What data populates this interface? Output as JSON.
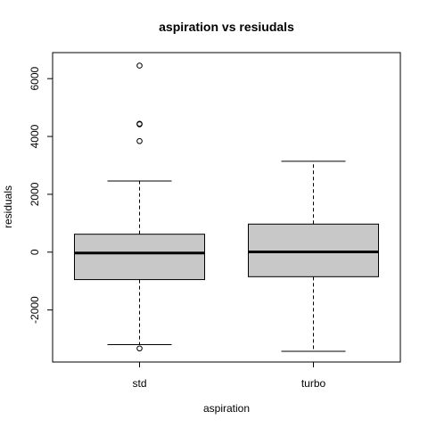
{
  "chart_data": {
    "type": "box",
    "title": "aspiration  vs resiudals",
    "xlabel": "aspiration",
    "ylabel": "residuals",
    "ylim": [
      -3800,
      6900
    ],
    "yticks": [
      -2000,
      0,
      2000,
      4000,
      6000
    ],
    "ytick_labels": [
      "-2000",
      "0",
      "2000",
      "4000",
      "6000"
    ],
    "box_fill": "#c8c8c8",
    "categories": [
      "std",
      "turbo"
    ],
    "boxes": [
      {
        "category": "std",
        "whisker_low": -3200,
        "q1": -950,
        "median": -30,
        "q3": 620,
        "whisker_high": 2460,
        "outliers": [
          -3330,
          3840,
          4420,
          4440,
          6450
        ]
      },
      {
        "category": "turbo",
        "whisker_low": -3430,
        "q1": -850,
        "median": 10,
        "q3": 970,
        "whisker_high": 3140,
        "outliers": []
      }
    ]
  }
}
